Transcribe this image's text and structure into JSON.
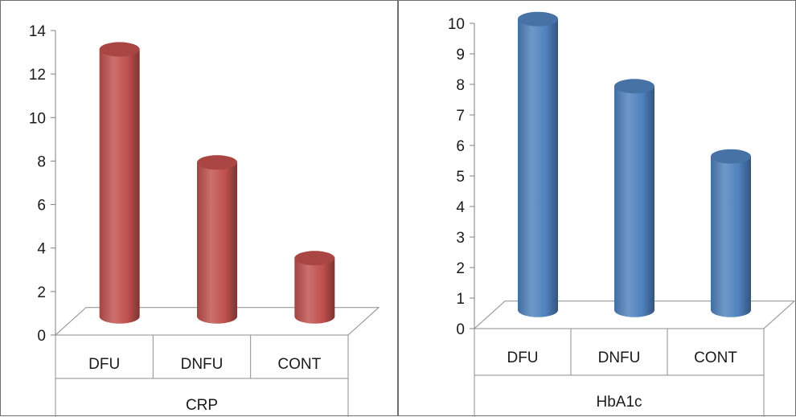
{
  "chart_data": [
    {
      "type": "bar",
      "style": "3d-cylinder",
      "categories": [
        "DFU",
        "DNFU",
        "CONT"
      ],
      "values": [
        12.8,
        7.6,
        3.2
      ],
      "xlabel": "CRP",
      "ylim": [
        0,
        14
      ],
      "yticks": [
        "0",
        "2",
        "4",
        "6",
        "8",
        "10",
        "12",
        "14"
      ],
      "color": "#c0504d",
      "grid": false
    },
    {
      "type": "bar",
      "style": "3d-cylinder",
      "categories": [
        "DFU",
        "DNFU",
        "CONT"
      ],
      "values": [
        9.9,
        7.7,
        5.4
      ],
      "xlabel": "HbA1c",
      "ylim": [
        0,
        10
      ],
      "yticks": [
        "0",
        "1",
        "2",
        "3",
        "4",
        "5",
        "6",
        "7",
        "8",
        "9",
        "10"
      ],
      "color": "#4f81bd",
      "grid": false
    }
  ]
}
